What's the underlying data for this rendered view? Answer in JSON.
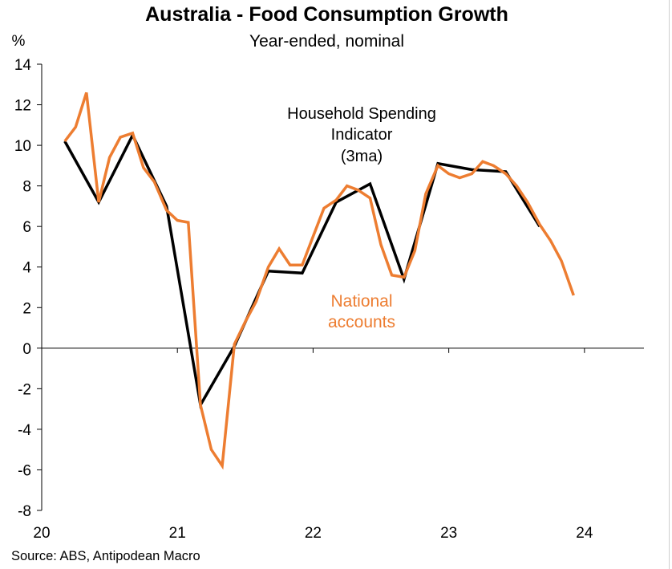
{
  "chart_data": {
    "type": "line",
    "title": "Australia - Food Consumption Growth",
    "subtitle": "Year-ended, nominal",
    "ylabel": "%",
    "source": "Source: ABS, Antipodean Macro",
    "ylim": [
      -8,
      14
    ],
    "yticks": [
      14,
      12,
      10,
      8,
      6,
      4,
      2,
      0,
      -2,
      -4,
      -6,
      -8
    ],
    "ytick_labels": [
      "14",
      "12",
      "10",
      "8",
      "6",
      "4",
      "2",
      "0",
      "-2",
      "-4",
      "-6",
      "-8"
    ],
    "xlim": [
      20.0,
      24.45
    ],
    "xticks": [
      20,
      21,
      22,
      23,
      24
    ],
    "xtick_labels": [
      "20",
      "21",
      "22",
      "23",
      "24"
    ],
    "grid": false,
    "series": [
      {
        "name": "Household Spending Indicator (3ma)",
        "label_lines": [
          "Household Spending",
          "Indicator",
          "(3ma)"
        ],
        "color": "#000000",
        "points": [
          [
            20.17,
            10.2
          ],
          [
            20.42,
            7.2
          ],
          [
            20.67,
            10.5
          ],
          [
            20.92,
            7.0
          ],
          [
            21.17,
            -2.8
          ],
          [
            21.42,
            0.1
          ],
          [
            21.67,
            3.8
          ],
          [
            21.92,
            3.7
          ],
          [
            22.17,
            7.2
          ],
          [
            22.42,
            8.1
          ],
          [
            22.67,
            3.4
          ],
          [
            22.92,
            9.1
          ],
          [
            23.17,
            8.8
          ],
          [
            23.42,
            8.7
          ],
          [
            23.67,
            6.0
          ]
        ]
      },
      {
        "name": "National accounts",
        "label_lines": [
          "National",
          "accounts"
        ],
        "color": "#ED7D31",
        "points": [
          [
            20.17,
            10.2
          ],
          [
            20.25,
            10.9
          ],
          [
            20.33,
            12.6
          ],
          [
            20.42,
            7.2
          ],
          [
            20.5,
            9.4
          ],
          [
            20.58,
            10.4
          ],
          [
            20.67,
            10.6
          ],
          [
            20.75,
            8.9
          ],
          [
            20.83,
            8.2
          ],
          [
            20.92,
            6.8
          ],
          [
            21.0,
            6.3
          ],
          [
            21.08,
            6.2
          ],
          [
            21.17,
            -2.8
          ],
          [
            21.25,
            -5.0
          ],
          [
            21.33,
            -5.8
          ],
          [
            21.42,
            0.2
          ],
          [
            21.5,
            1.3
          ],
          [
            21.58,
            2.3
          ],
          [
            21.67,
            4.0
          ],
          [
            21.75,
            4.9
          ],
          [
            21.83,
            4.1
          ],
          [
            21.92,
            4.1
          ],
          [
            22.0,
            5.5
          ],
          [
            22.08,
            6.9
          ],
          [
            22.17,
            7.3
          ],
          [
            22.25,
            8.0
          ],
          [
            22.33,
            7.8
          ],
          [
            22.42,
            7.4
          ],
          [
            22.5,
            5.1
          ],
          [
            22.58,
            3.6
          ],
          [
            22.67,
            3.5
          ],
          [
            22.75,
            4.8
          ],
          [
            22.83,
            7.6
          ],
          [
            22.92,
            9.0
          ],
          [
            23.0,
            8.6
          ],
          [
            23.08,
            8.4
          ],
          [
            23.17,
            8.6
          ],
          [
            23.25,
            9.2
          ],
          [
            23.33,
            9.0
          ],
          [
            23.42,
            8.6
          ],
          [
            23.5,
            8.0
          ],
          [
            23.58,
            7.2
          ],
          [
            23.67,
            6.1
          ],
          [
            23.75,
            5.3
          ],
          [
            23.83,
            4.3
          ],
          [
            23.92,
            2.6
          ]
        ]
      }
    ]
  }
}
